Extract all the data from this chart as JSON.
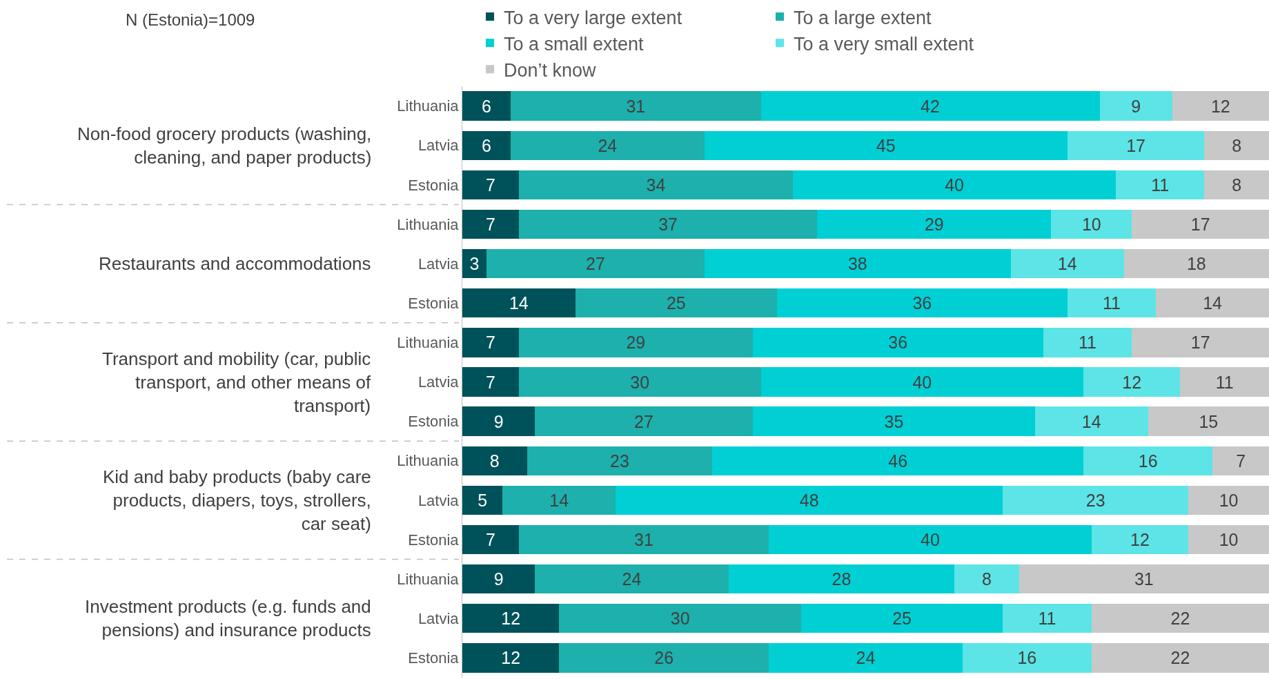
{
  "chart_data": {
    "type": "bar",
    "orientation": "horizontal",
    "stacked": true,
    "data_labels": true,
    "legend": "top",
    "tick_labels": "y",
    "xlim": [
      0,
      100
    ],
    "categories": [
      "Lithuania",
      "Latvia",
      "Estonia",
      "Lithuania",
      "Latvia",
      "Estonia",
      "Lithuania",
      "Latvia",
      "Estonia",
      "Lithuania",
      "Latvia",
      "Estonia",
      "Lithuania",
      "Latvia",
      "Estonia"
    ],
    "series": [
      {
        "name": "To a very large extent",
        "color": "#00525a",
        "values": [
          6,
          6,
          7,
          7,
          3,
          14,
          7,
          7,
          9,
          8,
          5,
          7,
          9,
          12,
          12
        ]
      },
      {
        "name": "To a large extent",
        "color": "#1db0ac",
        "values": [
          31,
          24,
          34,
          37,
          27,
          25,
          29,
          30,
          27,
          23,
          14,
          31,
          24,
          30,
          26
        ]
      },
      {
        "name": "To a small extent",
        "color": "#00cfd4",
        "values": [
          42,
          45,
          40,
          29,
          38,
          36,
          36,
          40,
          35,
          46,
          48,
          40,
          28,
          25,
          24
        ]
      },
      {
        "name": "To a very small extent",
        "color": "#5de4e6",
        "values": [
          9,
          17,
          11,
          10,
          14,
          11,
          11,
          12,
          14,
          16,
          23,
          12,
          8,
          11,
          16
        ]
      },
      {
        "name": "Don’t know",
        "color": "#c8c8c8",
        "values": [
          12,
          8,
          8,
          17,
          18,
          14,
          17,
          11,
          15,
          7,
          10,
          10,
          31,
          22,
          22
        ]
      }
    ],
    "annotations": [
      "N (Estonia)=1009",
      "Non-food grocery products (washing, cleaning, and paper products)",
      "Restaurants and accommodations",
      "Transport and mobility (car, public transport, and other means of transport)",
      "Kid and baby products (baby care products, diapers, toys, strollers, car seat)",
      "Investment products (e.g. funds and pensions) and insurance products"
    ]
  }
}
